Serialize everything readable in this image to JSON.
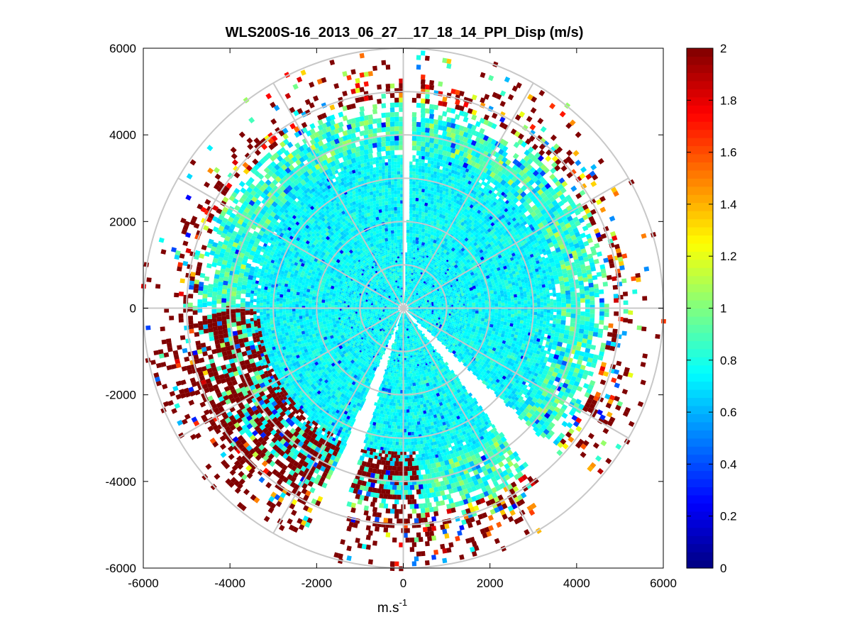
{
  "chart_data": {
    "type": "heatmap",
    "subtype": "polar-ppi-scan",
    "title": "WLS200S-16_2013_06_27__17_18_14_PPI_Disp (m/s)",
    "xlabel_base": "m.s",
    "xlabel_sup": "-1",
    "ylabel": "",
    "xlim": [
      -6000,
      6000
    ],
    "ylim": [
      -6000,
      6000
    ],
    "x_ticks": [
      -6000,
      -4000,
      -2000,
      0,
      2000,
      4000,
      6000
    ],
    "y_ticks": [
      -6000,
      -4000,
      -2000,
      0,
      2000,
      4000,
      6000
    ],
    "x_tick_labels": [
      "-6000",
      "-4000",
      "-2000",
      "0",
      "2000",
      "4000",
      "6000"
    ],
    "y_tick_labels": [
      "-6000",
      "-4000",
      "-2000",
      "0",
      "2000",
      "4000",
      "6000"
    ],
    "grid_rings": [
      1000,
      2000,
      3000,
      4000,
      5000,
      6000
    ],
    "grid_spoke_step_deg": 30,
    "max_range": 6000,
    "colorbar": {
      "colormap": "jet",
      "clim": [
        0,
        2
      ],
      "ticks": [
        0,
        0.2,
        0.4,
        0.6,
        0.8,
        1,
        1.2,
        1.4,
        1.6,
        1.8,
        2
      ],
      "tick_labels": [
        "0",
        "0.2",
        "0.4",
        "0.6",
        "0.8",
        "1",
        "1.2",
        "1.4",
        "1.6",
        "1.8",
        "2"
      ]
    },
    "field_description": {
      "core_typical_value": 0.75,
      "outer_edge_typical_value": 2.0,
      "blanked_sectors_deg": [
        [
          0,
          3
        ],
        [
          133,
          142
        ],
        [
          196,
          203
        ]
      ],
      "saturated_sectors_deg": [
        [
          205,
          240
        ],
        [
          175,
          200
        ],
        [
          240,
          270
        ]
      ]
    }
  }
}
